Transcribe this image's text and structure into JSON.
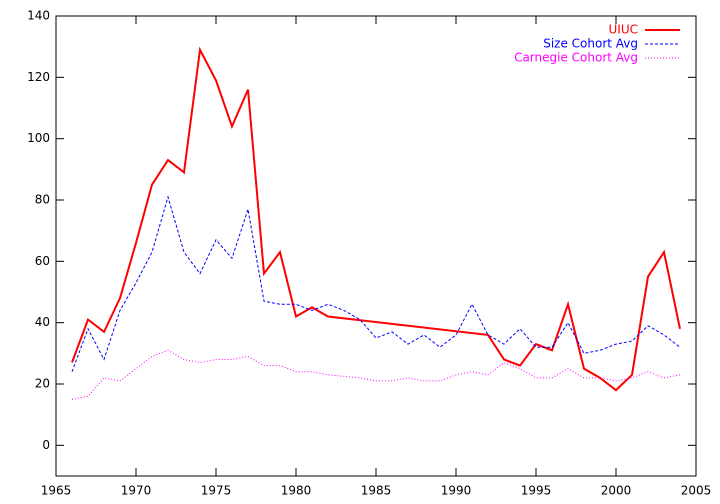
{
  "chart_data": {
    "type": "line",
    "xlim": [
      1965,
      2005
    ],
    "xticks": [
      1965,
      1970,
      1975,
      1980,
      1985,
      1990,
      1995,
      2000,
      2005
    ],
    "ylim": [
      -10,
      140
    ],
    "yticks": [
      0,
      20,
      40,
      60,
      80,
      100,
      120,
      140
    ],
    "legend": "top-right",
    "series": [
      {
        "name": "UIUC",
        "color": "#ff0000",
        "style": "solid",
        "x": [
          1966,
          1967,
          1968,
          1969,
          1970,
          1971,
          1972,
          1973,
          1974,
          1975,
          1976,
          1977,
          1978,
          1979,
          1980,
          1981,
          1982,
          1992,
          1993,
          1994,
          1995,
          1996,
          1997,
          1998,
          1999,
          2000,
          2001,
          2002,
          2003,
          2004
        ],
        "values": [
          27,
          41,
          37,
          48,
          66,
          85,
          93,
          89,
          129,
          119,
          104,
          116,
          56,
          63,
          42,
          45,
          42,
          36,
          28,
          26,
          33,
          31,
          46,
          25,
          22,
          18,
          23,
          55,
          63,
          38
        ]
      },
      {
        "name": "Size Cohort Avg",
        "color": "#0000ff",
        "style": "dashed",
        "x": [
          1966,
          1967,
          1968,
          1969,
          1970,
          1971,
          1972,
          1973,
          1974,
          1975,
          1976,
          1977,
          1978,
          1979,
          1980,
          1981,
          1982,
          1983,
          1984,
          1985,
          1986,
          1987,
          1988,
          1989,
          1990,
          1991,
          1992,
          1993,
          1994,
          1995,
          1996,
          1997,
          1998,
          1999,
          2000,
          2001,
          2002,
          2003,
          2004
        ],
        "values": [
          24,
          38,
          28,
          44,
          53,
          63,
          81,
          63,
          56,
          67,
          61,
          77,
          47,
          46,
          46,
          44,
          46,
          44,
          41,
          35,
          37,
          33,
          36,
          32,
          36,
          46,
          36,
          33,
          38,
          32,
          32,
          40,
          30,
          31,
          33,
          34,
          39,
          36,
          32
        ]
      },
      {
        "name": "Carnegie Cohort Avg",
        "color": "#ff00ff",
        "style": "dotted",
        "x": [
          1966,
          1967,
          1968,
          1969,
          1970,
          1971,
          1972,
          1973,
          1974,
          1975,
          1976,
          1977,
          1978,
          1979,
          1980,
          1981,
          1982,
          1983,
          1984,
          1985,
          1986,
          1987,
          1988,
          1989,
          1990,
          1991,
          1992,
          1993,
          1994,
          1995,
          1996,
          1997,
          1998,
          1999,
          2000,
          2001,
          2002,
          2003,
          2004
        ],
        "values": [
          15,
          16,
          22,
          21,
          25,
          29,
          31,
          28,
          27,
          28,
          28,
          29,
          26,
          26,
          24,
          24,
          23,
          22.5,
          22,
          21,
          21,
          22,
          21,
          21,
          23,
          24,
          23,
          27,
          25,
          22,
          22,
          25,
          22,
          22,
          21,
          22,
          24,
          22,
          23
        ]
      }
    ]
  }
}
